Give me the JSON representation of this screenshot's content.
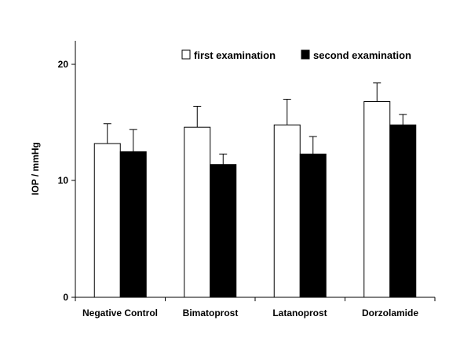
{
  "chart_data": {
    "type": "bar",
    "title": "",
    "xlabel": "",
    "ylabel": "IOP / mmHg",
    "ylim": [
      0,
      24
    ],
    "yticks": [
      0,
      10,
      20
    ],
    "categories": [
      "Negative Control",
      "Bimatoprost",
      "Latanoprost",
      "Dorzolamide"
    ],
    "series": [
      {
        "name": "first examination",
        "fill": "#ffffff",
        "values": [
          13.2,
          14.6,
          14.8,
          16.8
        ],
        "errors": [
          1.7,
          1.8,
          2.2,
          1.6
        ]
      },
      {
        "name": "second examination",
        "fill": "#000000",
        "values": [
          12.5,
          11.4,
          12.3,
          14.8
        ],
        "errors": [
          1.9,
          0.9,
          1.5,
          0.9
        ]
      }
    ],
    "legend_position": "top-right",
    "grid": false
  }
}
